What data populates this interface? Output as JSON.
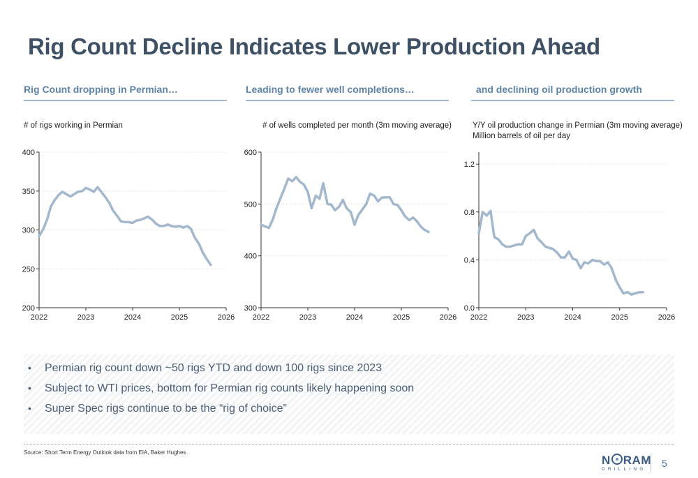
{
  "slide": {
    "title": "Rig Count Decline Indicates Lower Production Ahead",
    "page_number": "5",
    "source": "Source: Short Term Energy Outlook data from EIA, Baker Hughes",
    "logo": {
      "text_pre": "N",
      "text_post": "RAM",
      "sub": "DRILLING",
      "icon": "globe-o-icon"
    },
    "accent_color": "#5f84a6",
    "line_color": "#a3b8cc"
  },
  "panels": [
    {
      "title": "Rig Count dropping in Permian…",
      "subtitle": [
        "# of rigs working in Permian"
      ]
    },
    {
      "title": "Leading to fewer well completions…",
      "subtitle": [
        "# of wells completed per month (3m moving average)"
      ]
    },
    {
      "title": "and declining oil production growth",
      "subtitle": [
        "Y/Y oil production change in Permian (3m moving average)",
        "Million barrels of oil per day"
      ]
    }
  ],
  "bullets": [
    "Permian rig count down ~50 rigs YTD and down 100 rigs since 2023",
    "Subject to WTI prices, bottom for Permian rig counts likely happening soon",
    "Super Spec rigs continue to be the “rig of choice”"
  ],
  "chart_data": [
    {
      "type": "line",
      "title": "",
      "xlim": [
        2022,
        2026
      ],
      "ylim": [
        200,
        400
      ],
      "x_ticks": [
        2022,
        2023,
        2024,
        2025,
        2026
      ],
      "y_ticks": [
        200,
        250,
        300,
        350,
        400
      ],
      "grid": true,
      "x": [
        2022.0,
        2022.08,
        2022.17,
        2022.25,
        2022.33,
        2022.42,
        2022.5,
        2022.58,
        2022.67,
        2022.75,
        2022.83,
        2022.92,
        2023.0,
        2023.08,
        2023.17,
        2023.25,
        2023.33,
        2023.42,
        2023.5,
        2023.58,
        2023.67,
        2023.75,
        2023.83,
        2023.92,
        2024.0,
        2024.08,
        2024.17,
        2024.25,
        2024.33,
        2024.42,
        2024.5,
        2024.58,
        2024.67,
        2024.75,
        2024.83,
        2024.92,
        2025.0,
        2025.08,
        2025.17,
        2025.25,
        2025.33,
        2025.42,
        2025.5,
        2025.58,
        2025.67
      ],
      "series": [
        {
          "values": [
            292,
            300,
            313,
            330,
            338,
            345,
            349,
            346,
            343,
            346,
            349,
            350,
            354,
            352,
            349,
            355,
            349,
            342,
            335,
            325,
            318,
            311,
            310,
            310,
            309,
            312,
            313,
            315,
            317,
            313,
            308,
            305,
            305,
            307,
            305,
            304,
            305,
            303,
            305,
            301,
            290,
            282,
            271,
            263,
            255
          ]
        }
      ]
    },
    {
      "type": "line",
      "title": "",
      "xlim": [
        2022,
        2026
      ],
      "ylim": [
        300,
        600
      ],
      "x_ticks": [
        2022,
        2023,
        2024,
        2025,
        2026
      ],
      "y_ticks": [
        300,
        400,
        500,
        600
      ],
      "grid": true,
      "x": [
        2022.0,
        2022.08,
        2022.17,
        2022.25,
        2022.33,
        2022.42,
        2022.5,
        2022.58,
        2022.67,
        2022.75,
        2022.83,
        2022.92,
        2023.0,
        2023.08,
        2023.17,
        2023.25,
        2023.33,
        2023.42,
        2023.5,
        2023.58,
        2023.67,
        2023.75,
        2023.83,
        2023.92,
        2024.0,
        2024.08,
        2024.17,
        2024.25,
        2024.33,
        2024.42,
        2024.5,
        2024.58,
        2024.67,
        2024.75,
        2024.83,
        2024.92,
        2025.0,
        2025.08,
        2025.17,
        2025.25,
        2025.33,
        2025.42,
        2025.5,
        2025.58
      ],
      "series": [
        {
          "values": [
            460,
            457,
            454,
            470,
            492,
            512,
            530,
            549,
            544,
            552,
            543,
            537,
            523,
            492,
            516,
            510,
            540,
            500,
            499,
            488,
            495,
            508,
            492,
            484,
            460,
            479,
            490,
            500,
            520,
            516,
            505,
            512,
            513,
            513,
            500,
            498,
            488,
            476,
            469,
            474,
            467,
            456,
            450,
            446
          ]
        }
      ]
    },
    {
      "type": "line",
      "title": "",
      "xlim": [
        2022,
        2026
      ],
      "ylim": [
        0.0,
        1.3
      ],
      "x_ticks": [
        2022,
        2023,
        2024,
        2025,
        2026
      ],
      "y_ticks": [
        0.0,
        0.4,
        0.8,
        1.2
      ],
      "grid": true,
      "x": [
        2022.0,
        2022.08,
        2022.17,
        2022.25,
        2022.33,
        2022.42,
        2022.5,
        2022.58,
        2022.67,
        2022.75,
        2022.83,
        2022.92,
        2023.0,
        2023.08,
        2023.17,
        2023.25,
        2023.33,
        2023.42,
        2023.5,
        2023.58,
        2023.67,
        2023.75,
        2023.83,
        2023.92,
        2024.0,
        2024.08,
        2024.17,
        2024.25,
        2024.33,
        2024.42,
        2024.5,
        2024.58,
        2024.67,
        2024.75,
        2024.83,
        2024.92,
        2025.0,
        2025.08,
        2025.17,
        2025.25,
        2025.33,
        2025.42,
        2025.5
      ],
      "series": [
        {
          "values": [
            0.62,
            0.8,
            0.77,
            0.81,
            0.59,
            0.57,
            0.53,
            0.51,
            0.51,
            0.52,
            0.53,
            0.53,
            0.6,
            0.62,
            0.65,
            0.58,
            0.55,
            0.51,
            0.5,
            0.49,
            0.46,
            0.42,
            0.42,
            0.47,
            0.41,
            0.4,
            0.33,
            0.38,
            0.37,
            0.4,
            0.39,
            0.39,
            0.36,
            0.38,
            0.33,
            0.23,
            0.17,
            0.12,
            0.13,
            0.11,
            0.12,
            0.13,
            0.13
          ]
        }
      ]
    }
  ]
}
